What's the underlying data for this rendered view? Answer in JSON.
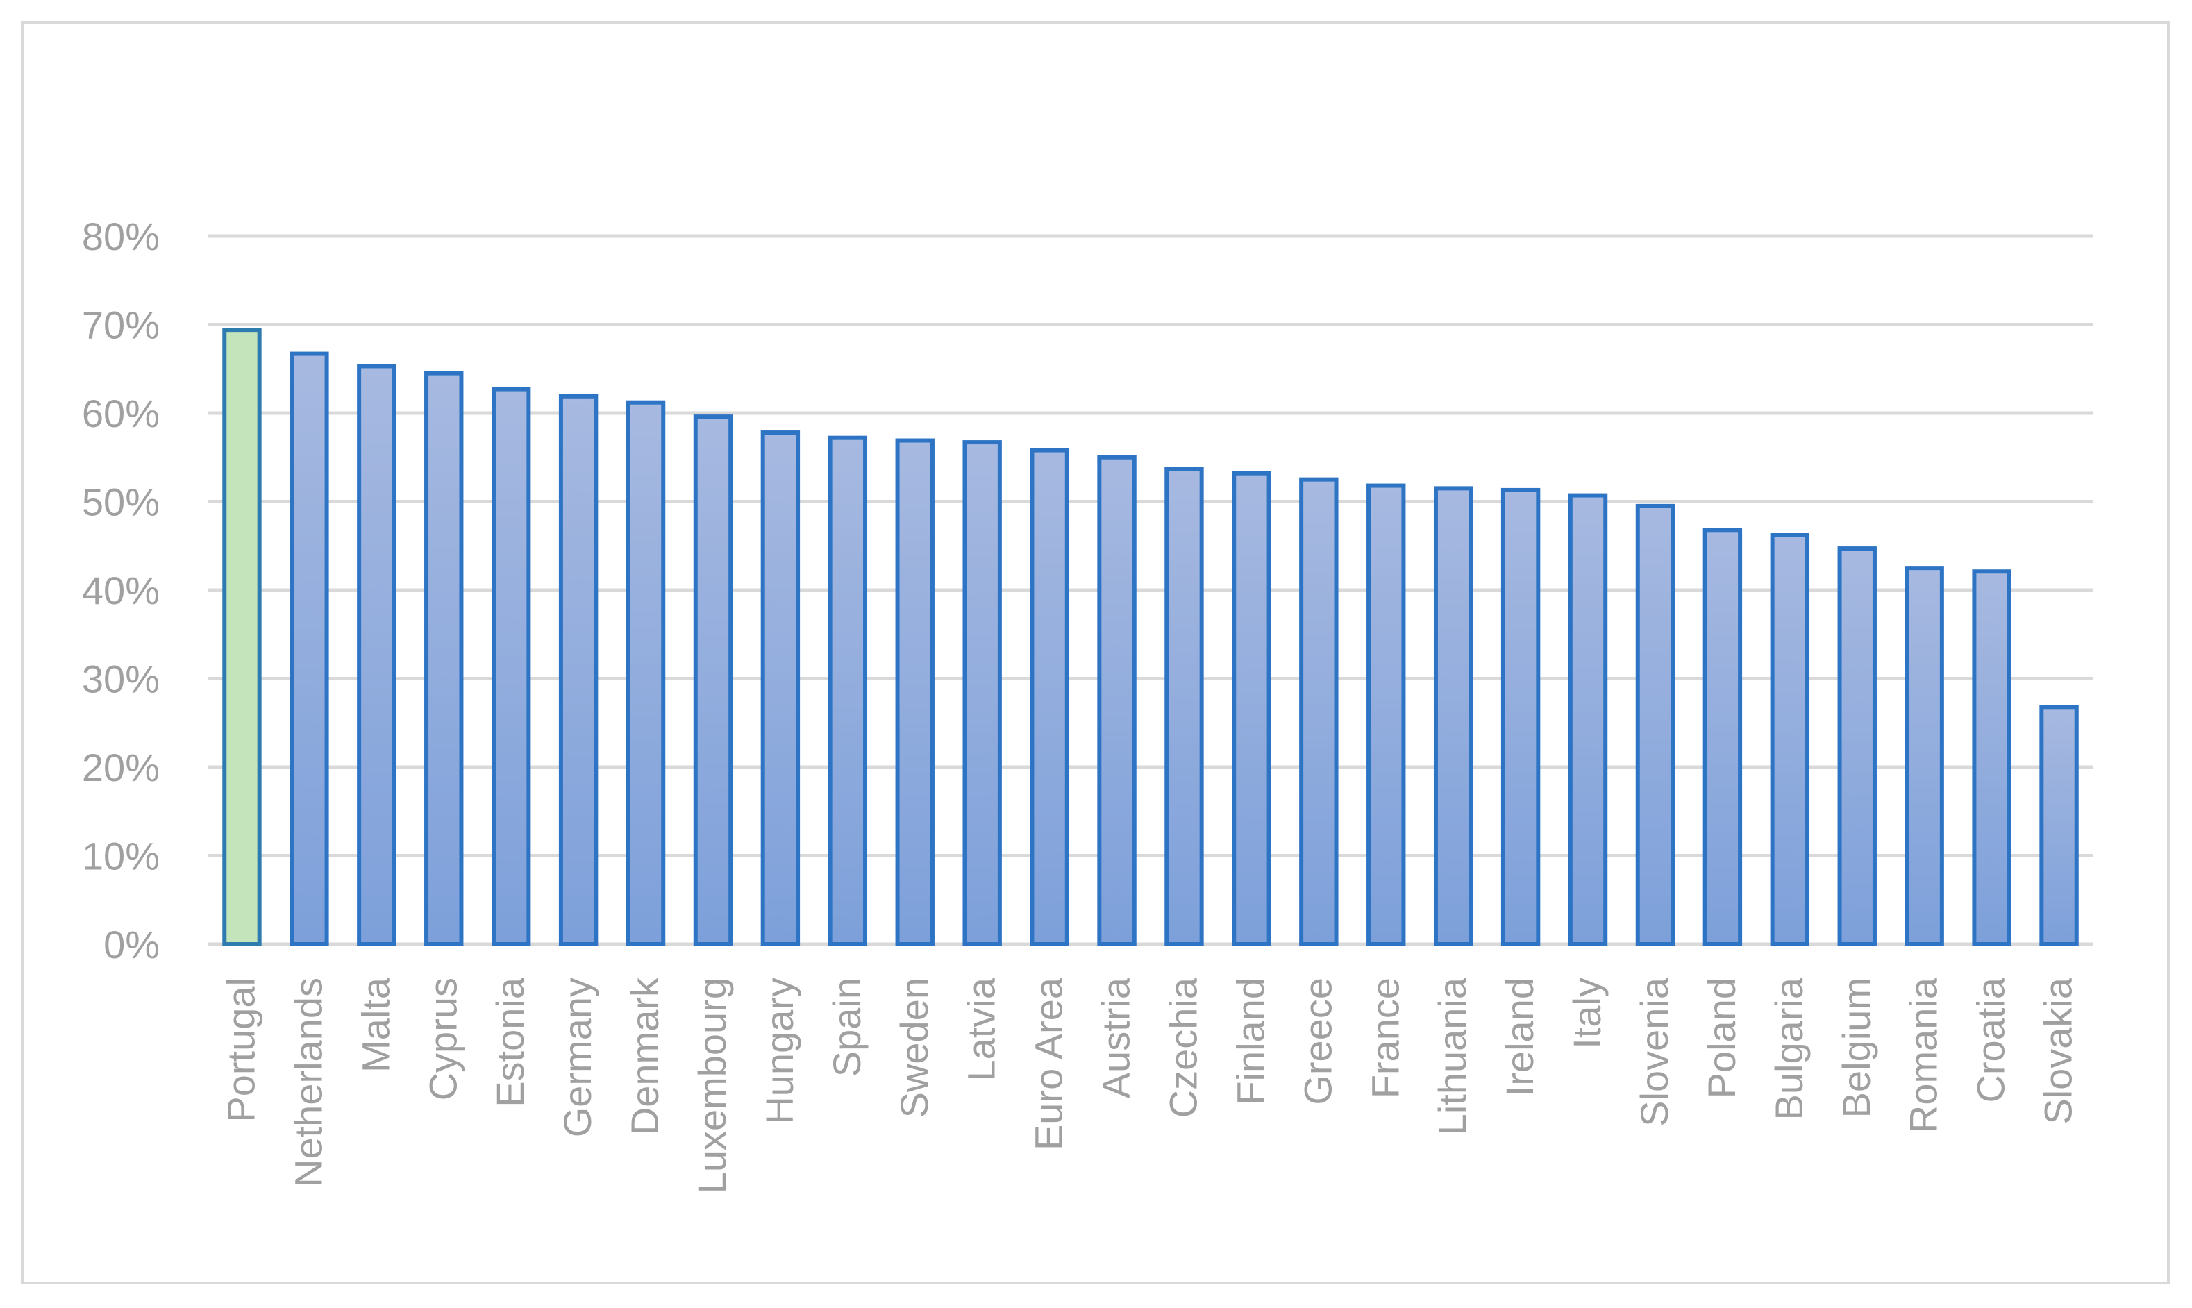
{
  "chart_data": {
    "type": "bar",
    "title": "",
    "xlabel": "",
    "ylabel": "",
    "ylim": [
      0,
      0.8
    ],
    "yticks": [
      0,
      0.1,
      0.2,
      0.3,
      0.4,
      0.5,
      0.6,
      0.7,
      0.8
    ],
    "ytick_labels": [
      "0%",
      "10%",
      "20%",
      "30%",
      "40%",
      "50%",
      "60%",
      "70%",
      "80%"
    ],
    "grid": true,
    "legend": "none",
    "categories": [
      "Portugal",
      "Netherlands",
      "Malta",
      "Cyprus",
      "Estonia",
      "Germany",
      "Denmark",
      "Luxembourg",
      "Hungary",
      "Spain",
      "Sweden",
      "Latvia",
      "Euro Area",
      "Austria",
      "Czechia",
      "Finland",
      "Greece",
      "France",
      "Lithuania",
      "Ireland",
      "Italy",
      "Slovenia",
      "Poland",
      "Bulgaria",
      "Belgium",
      "Romania",
      "Croatia",
      "Slovakia"
    ],
    "values": [
      0.694,
      0.667,
      0.653,
      0.645,
      0.627,
      0.619,
      0.612,
      0.596,
      0.578,
      0.572,
      0.569,
      0.567,
      0.558,
      0.55,
      0.537,
      0.532,
      0.525,
      0.518,
      0.515,
      0.513,
      0.507,
      0.495,
      0.468,
      0.462,
      0.447,
      0.425,
      0.421,
      0.268
    ],
    "highlight_category": "Portugal",
    "colors": {
      "bar_fill_top": "#a7b9e0",
      "bar_fill_bottom": "#7da0da",
      "bar_stroke": "#2e74c4",
      "highlight_fill": "#c4e4bc",
      "highlight_stroke": "#2e7bb0",
      "grid": "#d9d9d9",
      "tick_text": "#a0a0a0"
    }
  }
}
